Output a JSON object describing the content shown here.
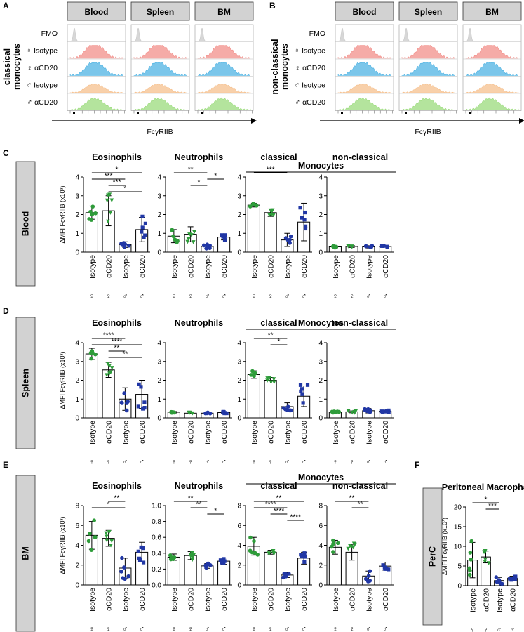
{
  "colors": {
    "fmo": "#c9c9c9",
    "female_isotype": "#f28f8a",
    "female_acd20": "#4fb3e3",
    "male_isotype": "#f5c08e",
    "male_acd20": "#9bdb7c",
    "green": "#2e9c3a",
    "blue": "#2137a5",
    "label_box": "#d2d2d2"
  },
  "panel_labels": [
    "A",
    "B",
    "C",
    "D",
    "E",
    "F"
  ],
  "histograms": {
    "columns": [
      "Blood",
      "Spleen",
      "BM"
    ],
    "rows": [
      "FMO",
      "♀ Isotype",
      "♀ αCD20",
      "♂ Isotype",
      "♂ αCD20"
    ],
    "xlabel": "FcγRIIB",
    "panel_A_title": [
      "classical",
      "monocytes"
    ],
    "panel_B_title": [
      "non-classical",
      "monocytes"
    ]
  },
  "group_axis": {
    "labels": [
      "Isotype",
      "αCD20",
      "Isotype",
      "αCD20"
    ],
    "sexes": [
      "♀",
      "♀",
      "♂",
      "♂"
    ]
  },
  "row_labels": [
    "Blood",
    "Spleen",
    "BM",
    "PerC"
  ],
  "monocytes_header": "Monocytes",
  "ylabel_main": "ΔMFI FcγRIIB (x10³)",
  "ylabel_short": "ΔMFI FcγRIIB (x10³)",
  "panel_F_title": [
    "Peritoneal",
    "Macrophages"
  ],
  "chart_data": [
    {
      "type": "bar",
      "row": "Blood",
      "title": "Eosinophils",
      "ylim": [
        0,
        4
      ],
      "yticks": [
        "0",
        "1",
        "2",
        "3",
        "4"
      ],
      "categories": [
        "♀ Isotype",
        "♀ αCD20",
        "♂ Isotype",
        "♂ αCD20"
      ],
      "values": [
        2.1,
        2.2,
        0.4,
        1.2
      ],
      "errors": [
        0.35,
        0.8,
        0.15,
        0.65
      ],
      "sig": [
        {
          "a": 0,
          "b": 3,
          "text": "*"
        },
        {
          "a": 0,
          "b": 2,
          "text": "***"
        },
        {
          "a": 1,
          "b": 2,
          "text": "***"
        },
        {
          "a": 1,
          "b": 3,
          "text": "*"
        }
      ]
    },
    {
      "type": "bar",
      "row": "Blood",
      "title": "Neutrophils",
      "ylim": [
        0,
        4
      ],
      "yticks": [
        "0",
        "1",
        "2",
        "3",
        "4"
      ],
      "categories": [
        "♀ Isotype",
        "♀ αCD20",
        "♂ Isotype",
        "♂ αCD20"
      ],
      "values": [
        0.85,
        0.95,
        0.3,
        0.8
      ],
      "errors": [
        0.35,
        0.4,
        0.1,
        0.15
      ],
      "sig": [
        {
          "a": 0,
          "b": 2,
          "text": "**"
        },
        {
          "a": 2,
          "b": 3,
          "text": "*"
        },
        {
          "a": 1,
          "b": 2,
          "text": "*"
        }
      ]
    },
    {
      "type": "bar",
      "row": "Blood",
      "title": "classical",
      "ylim": [
        0,
        4
      ],
      "yticks": [
        "0",
        "1",
        "2",
        "3",
        "4"
      ],
      "categories": [
        "♀ Isotype",
        "♀ αCD20",
        "♂ Isotype",
        "♂ αCD20"
      ],
      "values": [
        2.5,
        2.1,
        0.65,
        1.6
      ],
      "errors": [
        0.1,
        0.2,
        0.35,
        1.0
      ],
      "sig": [
        {
          "a": 0,
          "b": 2,
          "text": "***"
        }
      ]
    },
    {
      "type": "bar",
      "row": "Blood",
      "title": "non-classical",
      "ylim": [
        0,
        4
      ],
      "yticks": [
        "0",
        "1",
        "2",
        "3",
        "4"
      ],
      "categories": [
        "♀ Isotype",
        "♀ αCD20",
        "♂ Isotype",
        "♂ αCD20"
      ],
      "values": [
        0.28,
        0.3,
        0.28,
        0.3
      ],
      "errors": [
        0.05,
        0.05,
        0.06,
        0.04
      ],
      "sig": []
    },
    {
      "type": "bar",
      "row": "Spleen",
      "title": "Eosinophils",
      "ylim": [
        0,
        4
      ],
      "yticks": [
        "0",
        "1",
        "2",
        "3",
        "4"
      ],
      "categories": [
        "♀ Isotype",
        "♀ αCD20",
        "♂ Isotype",
        "♂ αCD20"
      ],
      "values": [
        3.4,
        2.55,
        1.0,
        1.25
      ],
      "errors": [
        0.3,
        0.4,
        0.6,
        0.75
      ],
      "sig": [
        {
          "a": 0,
          "b": 2,
          "text": "****"
        },
        {
          "a": 0,
          "b": 3,
          "text": "****"
        },
        {
          "a": 1,
          "b": 2,
          "text": "**"
        },
        {
          "a": 1,
          "b": 3,
          "text": "**"
        }
      ]
    },
    {
      "type": "bar",
      "row": "Spleen",
      "title": "Neutrophils",
      "ylim": [
        0,
        4
      ],
      "yticks": [
        "0",
        "1",
        "2",
        "3",
        "4"
      ],
      "categories": [
        "♀ Isotype",
        "♀ αCD20",
        "♂ Isotype",
        "♂ αCD20"
      ],
      "values": [
        0.3,
        0.25,
        0.25,
        0.28
      ],
      "errors": [
        0.04,
        0.04,
        0.04,
        0.04
      ],
      "sig": []
    },
    {
      "type": "bar",
      "row": "Spleen",
      "title": "classical",
      "ylim": [
        0,
        4
      ],
      "yticks": [
        "0",
        "1",
        "2",
        "3",
        "4"
      ],
      "categories": [
        "♀ Isotype",
        "♀ αCD20",
        "♂ Isotype",
        "♂ αCD20"
      ],
      "values": [
        2.3,
        2.0,
        0.6,
        1.15
      ],
      "errors": [
        0.2,
        0.15,
        0.2,
        0.55
      ],
      "sig": [
        {
          "a": 0,
          "b": 2,
          "text": "**"
        },
        {
          "a": 1,
          "b": 2,
          "text": "*"
        }
      ]
    },
    {
      "type": "bar",
      "row": "Spleen",
      "title": "non-classical",
      "ylim": [
        0,
        4
      ],
      "yticks": [
        "0",
        "1",
        "2",
        "3",
        "4"
      ],
      "categories": [
        "♀ Isotype",
        "♀ αCD20",
        "♂ Isotype",
        "♂ αCD20"
      ],
      "values": [
        0.3,
        0.32,
        0.38,
        0.35
      ],
      "errors": [
        0.04,
        0.05,
        0.12,
        0.05
      ],
      "sig": []
    },
    {
      "type": "bar",
      "row": "BM",
      "title": "Eosinophils",
      "ylim": [
        0,
        8
      ],
      "yticks": [
        "0",
        "2",
        "4",
        "6",
        "8"
      ],
      "categories": [
        "♀ Isotype",
        "♀ αCD20",
        "♂ Isotype",
        "♂ αCD20"
      ],
      "values": [
        5.0,
        4.7,
        1.7,
        3.3
      ],
      "errors": [
        1.4,
        0.8,
        1.0,
        1.0
      ],
      "sig": [
        {
          "a": 1,
          "b": 2,
          "text": "**"
        },
        {
          "a": 0,
          "b": 2,
          "text": "*"
        }
      ]
    },
    {
      "type": "bar",
      "row": "BM",
      "title": "Neutrophils",
      "ylim": [
        0,
        1.0
      ],
      "yticks": [
        "0.0",
        "0.2",
        "0.4",
        "0.6",
        "0.8",
        "1.0"
      ],
      "categories": [
        "♀ Isotype",
        "♀ αCD20",
        "♂ Isotype",
        "♂ αCD20"
      ],
      "values": [
        0.35,
        0.37,
        0.24,
        0.3
      ],
      "errors": [
        0.04,
        0.05,
        0.03,
        0.04
      ],
      "sig": [
        {
          "a": 0,
          "b": 2,
          "text": "**"
        },
        {
          "a": 1,
          "b": 2,
          "text": "**"
        },
        {
          "a": 2,
          "b": 3,
          "text": "*"
        }
      ]
    },
    {
      "type": "bar",
      "row": "BM",
      "title": "classical",
      "ylim": [
        0,
        8
      ],
      "yticks": [
        "0",
        "2",
        "4",
        "6",
        "8"
      ],
      "categories": [
        "♀ Isotype",
        "♀ αCD20",
        "♂ Isotype",
        "♂ αCD20"
      ],
      "values": [
        3.9,
        3.3,
        1.0,
        2.7
      ],
      "errors": [
        0.9,
        0.2,
        0.25,
        0.6
      ],
      "sig": [
        {
          "a": 0,
          "b": 3,
          "text": "**"
        },
        {
          "a": 0,
          "b": 2,
          "text": "****"
        },
        {
          "a": 1,
          "b": 2,
          "text": "****"
        },
        {
          "a": 2,
          "b": 3,
          "text": "****"
        }
      ]
    },
    {
      "type": "bar",
      "row": "BM",
      "title": "non-classical",
      "ylim": [
        0,
        8
      ],
      "yticks": [
        "0",
        "2",
        "4",
        "6",
        "8"
      ],
      "categories": [
        "♀ Isotype",
        "♀ αCD20",
        "♂ Isotype",
        "♂ αCD20"
      ],
      "values": [
        3.8,
        3.3,
        0.9,
        1.9
      ],
      "errors": [
        0.7,
        0.8,
        0.5,
        0.4
      ],
      "sig": [
        {
          "a": 0,
          "b": 2,
          "text": "**"
        },
        {
          "a": 1,
          "b": 2,
          "text": "**"
        }
      ]
    },
    {
      "type": "bar",
      "row": "PerC",
      "title": "Peritoneal Macrophages",
      "ylim": [
        0,
        20
      ],
      "yticks": [
        "0",
        "5",
        "10",
        "15",
        "20"
      ],
      "categories": [
        "♀ Isotype",
        "♀ αCD20",
        "♂ Isotype",
        "♂ αCD20"
      ],
      "values": [
        6.5,
        7.3,
        1.3,
        1.9
      ],
      "errors": [
        4.5,
        1.5,
        0.8,
        0.5
      ],
      "sig": [
        {
          "a": 0,
          "b": 2,
          "text": "*"
        },
        {
          "a": 1,
          "b": 2,
          "text": "***"
        }
      ]
    }
  ]
}
